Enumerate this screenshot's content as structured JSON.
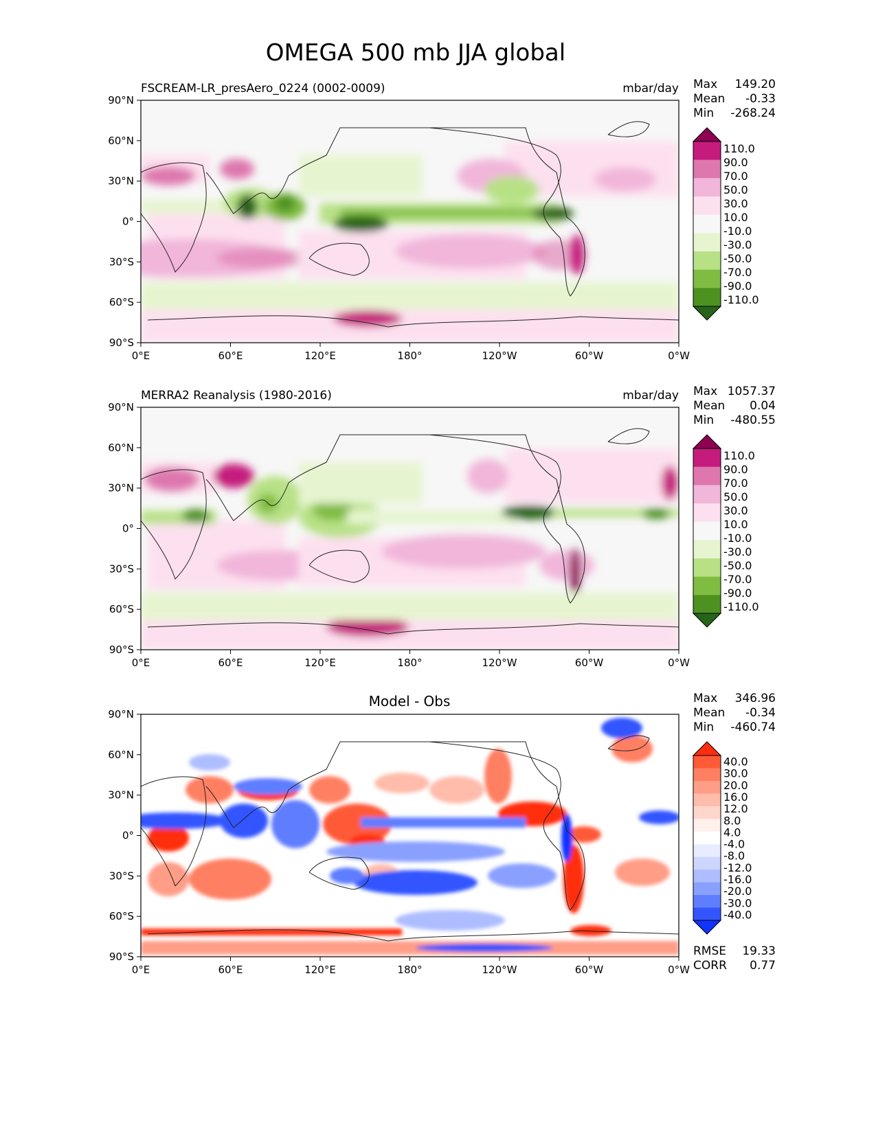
{
  "title": "OMEGA 500 mb JJA global",
  "panels": [
    {
      "left_title": "FSCREAM-LR_presAero_0224 (0002-0009)",
      "center_title": "",
      "units": "mbar/day",
      "stats": {
        "max_label": "Max",
        "max": "149.20",
        "mean_label": "Mean",
        "mean": "-0.33",
        "min_label": "Min",
        "min": "-268.24"
      },
      "extra_stats": [],
      "colorbar_labels": [
        "110.0",
        "90.0",
        "70.0",
        "50.0",
        "30.0",
        "10.0",
        "-10.0",
        "-30.0",
        "-50.0",
        "-70.0",
        "-90.0",
        "-110.0"
      ],
      "colorbar_colors": [
        "#8e0152",
        "#c51b7d",
        "#de77ae",
        "#f1b6da",
        "#fde0ef",
        "#f7f7f7",
        "#e6f5d0",
        "#b8e186",
        "#7fbc41",
        "#4d9221",
        "#276419"
      ]
    },
    {
      "left_title": "MERRA2 Reanalysis (1980-2016)",
      "center_title": "",
      "units": "mbar/day",
      "stats": {
        "max_label": "Max",
        "max": "1057.37",
        "mean_label": "Mean",
        "mean": "0.04",
        "min_label": "Min",
        "min": "-480.55"
      },
      "extra_stats": [],
      "colorbar_labels": [
        "110.0",
        "90.0",
        "70.0",
        "50.0",
        "30.0",
        "10.0",
        "-10.0",
        "-30.0",
        "-50.0",
        "-70.0",
        "-90.0",
        "-110.0"
      ],
      "colorbar_colors": [
        "#8e0152",
        "#c51b7d",
        "#de77ae",
        "#f1b6da",
        "#fde0ef",
        "#f7f7f7",
        "#e6f5d0",
        "#b8e186",
        "#7fbc41",
        "#4d9221",
        "#276419"
      ]
    },
    {
      "left_title": "",
      "center_title": "Model - Obs",
      "units": "",
      "stats": {
        "max_label": "Max",
        "max": "346.96",
        "mean_label": "Mean",
        "mean": "-0.34",
        "min_label": "Min",
        "min": "-460.74"
      },
      "extra_stats": [
        {
          "label": "RMSE",
          "value": "19.33"
        },
        {
          "label": "CORR",
          "value": "0.77"
        }
      ],
      "colorbar_labels": [
        "40.0",
        "30.0",
        "20.0",
        "16.0",
        "12.0",
        "8.0",
        "4.0",
        "-4.0",
        "-8.0",
        "-12.0",
        "-16.0",
        "-20.0",
        "-30.0",
        "-40.0"
      ],
      "colorbar_colors": [
        "#ff2d0f",
        "#ff5a38",
        "#ff7f62",
        "#ff9d87",
        "#ffbcab",
        "#ffd6cc",
        "#fff0ec",
        "#ffffff",
        "#e8ecff",
        "#cdd6ff",
        "#aebdff",
        "#8aa0ff",
        "#5f7dff",
        "#3355ff",
        "#1133ff"
      ]
    }
  ],
  "chart_data": {
    "type": "heatmap",
    "x_ticks": [
      "0°E",
      "60°E",
      "120°E",
      "180°",
      "120°W",
      "60°W",
      "0°W"
    ],
    "y_ticks": [
      "90°N",
      "60°N",
      "30°N",
      "0°",
      "30°S",
      "60°S",
      "90°S"
    ],
    "xlim": [
      0,
      360
    ],
    "ylim": [
      -90,
      90
    ],
    "map_projection": "plate carree, global",
    "color_palettes": [
      "PiYG reversed (panels 1-2)",
      "blue-white-red diverging (panel 3)"
    ]
  }
}
